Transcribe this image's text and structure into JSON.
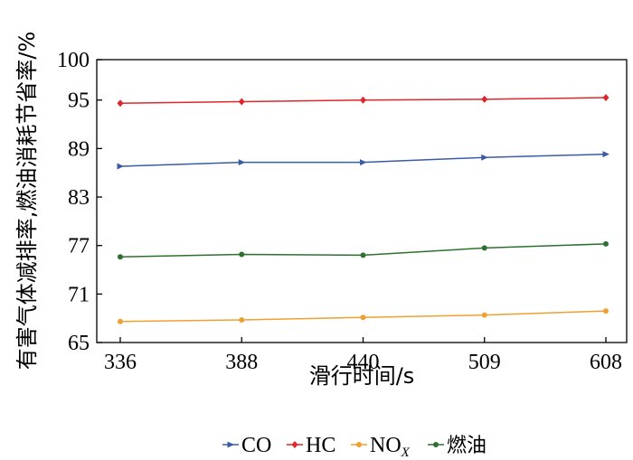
{
  "chart_data": {
    "type": "line",
    "title": "",
    "xlabel": "滑行时间/s",
    "ylabel": "有害气体减排率,燃油消耗节省率/%",
    "categories": [
      "336",
      "388",
      "440",
      "509",
      "608"
    ],
    "yticks": [
      "65",
      "71",
      "77",
      "83",
      "89",
      "95",
      "100"
    ],
    "ylim": [
      65,
      100
    ],
    "grid": false,
    "legend_position": "bottom",
    "series": [
      {
        "name": "CO",
        "color": "#3a5ba8",
        "marker": "triangle-right",
        "values": [
          86.8,
          87.3,
          87.3,
          87.9,
          88.3
        ]
      },
      {
        "name": "HC",
        "color": "#e0262a",
        "marker": "diamond",
        "values": [
          94.6,
          94.8,
          95.0,
          95.1,
          95.3
        ]
      },
      {
        "name": "NO",
        "name_subscript": "X",
        "color": "#f0a030",
        "marker": "circle",
        "values": [
          67.6,
          67.8,
          68.1,
          68.4,
          68.9
        ]
      },
      {
        "name": "燃油",
        "color": "#2e7030",
        "marker": "circle",
        "values": [
          75.6,
          75.9,
          75.8,
          76.7,
          77.2
        ]
      }
    ]
  }
}
